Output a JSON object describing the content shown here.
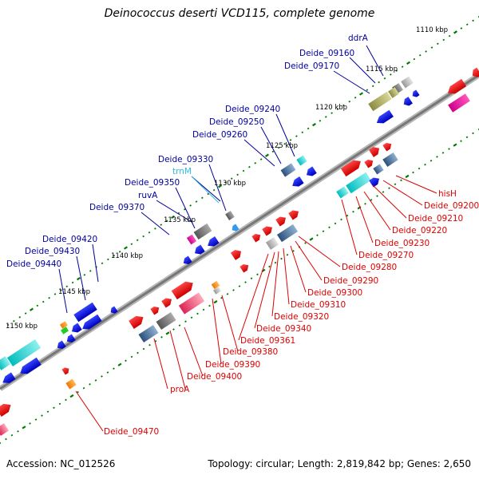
{
  "title": "Deinococcus deserti VCD115, complete genome",
  "footer": {
    "accession": "Accession: NC_012526",
    "summary": "Topology: circular; Length: 2,819,842 bp; Genes: 2,650"
  },
  "colors": {
    "forward_gene": "#ee0000",
    "reverse_gene": "#0000dd",
    "forward_label": "#dd0000",
    "reverse_label": "#000099",
    "trna_label": "#33bbdd",
    "tick": "#007700",
    "backbone": "#999999"
  },
  "ticks": [
    {
      "label": "1110 kbp"
    },
    {
      "label": "1115 kbp"
    },
    {
      "label": "1120 kbp"
    },
    {
      "label": "1125 kbp"
    },
    {
      "label": "1130 kbp"
    },
    {
      "label": "1135 kbp"
    },
    {
      "label": "1140 kbp"
    },
    {
      "label": "1145 kbp"
    },
    {
      "label": "1150 kbp"
    }
  ],
  "reverse_labels": [
    {
      "text": "ddrA"
    },
    {
      "text": "Deide_09160"
    },
    {
      "text": "Deide_09170"
    },
    {
      "text": "Deide_09240"
    },
    {
      "text": "Deide_09250"
    },
    {
      "text": "Deide_09260"
    },
    {
      "text": "Deide_09330"
    },
    {
      "text": "trnM",
      "kind": "trna"
    },
    {
      "text": "Deide_09350"
    },
    {
      "text": "ruvA"
    },
    {
      "text": "Deide_09370"
    },
    {
      "text": "Deide_09420"
    },
    {
      "text": "Deide_09430"
    },
    {
      "text": "Deide_09440"
    }
  ],
  "forward_labels": [
    {
      "text": "hisH"
    },
    {
      "text": "Deide_09200"
    },
    {
      "text": "Deide_09210"
    },
    {
      "text": "Deide_09220"
    },
    {
      "text": "Deide_09230"
    },
    {
      "text": "Deide_09270"
    },
    {
      "text": "Deide_09280"
    },
    {
      "text": "Deide_09290"
    },
    {
      "text": "Deide_09300"
    },
    {
      "text": "Deide_09310"
    },
    {
      "text": "Deide_09320"
    },
    {
      "text": "Deide_09340"
    },
    {
      "text": "Deide_09361"
    },
    {
      "text": "Deide_09380"
    },
    {
      "text": "Deide_09390"
    },
    {
      "text": "Deide_09400"
    },
    {
      "text": "proA"
    },
    {
      "text": "Deide_09470"
    }
  ]
}
